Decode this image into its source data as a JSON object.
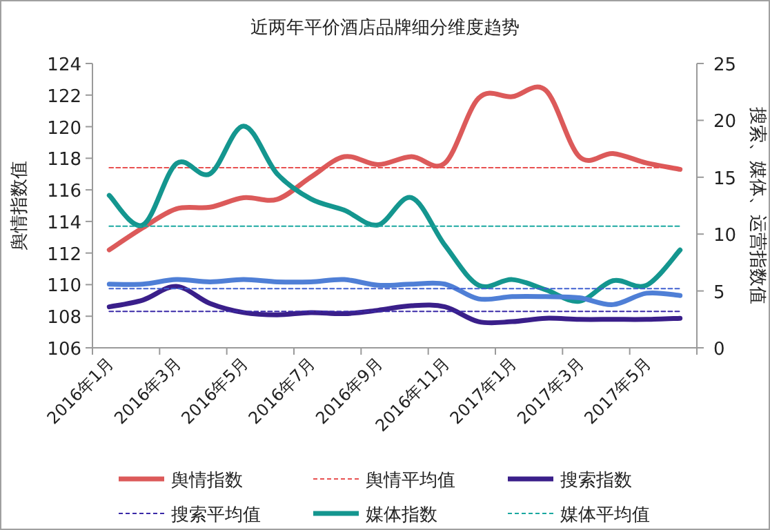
{
  "chart_data": {
    "type": "line",
    "title": "近两年平价酒店品牌细分维度趋势",
    "ylabel": "舆情指数值",
    "y2label": "搜索、媒体、运营指数值",
    "categories": [
      "2016年1月",
      null,
      "2016年3月",
      null,
      "2016年5月",
      null,
      "2016年7月",
      null,
      "2016年9月",
      null,
      "2016年11月",
      null,
      "2017年1月",
      null,
      "2017年3月",
      null,
      "2017年5月",
      null
    ],
    "ylim": [
      106,
      124
    ],
    "yticks": [
      106,
      108,
      110,
      112,
      114,
      116,
      118,
      120,
      122,
      124
    ],
    "y2lim": [
      0,
      25
    ],
    "y2ticks": [
      0,
      5,
      10,
      15,
      20,
      25
    ],
    "legend": "bottom",
    "grid": false,
    "marker": "none",
    "series": [
      {
        "name": "舆情指数",
        "color": "#dc5a5a",
        "values": [
          112.2,
          113.6,
          114.8,
          114.9,
          115.5,
          115.4,
          116.8,
          118.1,
          117.6,
          118.1,
          117.7,
          121.8,
          121.9,
          122.3,
          118.1,
          118.3,
          117.7,
          117.3
        ]
      },
      {
        "name": "舆情平均值",
        "color": "#e85050",
        "line_style": "dashed",
        "values": [
          117.4,
          117.4,
          117.4,
          117.4,
          117.4,
          117.4,
          117.4,
          117.4,
          117.4,
          117.4,
          117.4,
          117.4,
          117.4,
          117.4,
          117.4,
          117.4,
          117.4,
          117.4
        ]
      },
      {
        "name": "搜索指数",
        "color": "#3a1f8a",
        "axis": "y2",
        "values": [
          3.6,
          4.2,
          5.4,
          3.9,
          3.1,
          2.9,
          3.1,
          3.0,
          3.3,
          3.7,
          3.6,
          2.3,
          2.3,
          2.6,
          2.5,
          2.5,
          2.5,
          2.6
        ]
      },
      {
        "name": "搜索平均值",
        "color": "#3a2aa8",
        "axis": "y2",
        "line_style": "dashed",
        "values": [
          3.2,
          3.2,
          3.2,
          3.2,
          3.2,
          3.2,
          3.2,
          3.2,
          3.2,
          3.2,
          3.2,
          3.2,
          3.2,
          3.2,
          3.2,
          3.2,
          3.2,
          3.2
        ]
      },
      {
        "name": "媒体指数",
        "color": "#14968f",
        "axis": "y2",
        "values": [
          13.4,
          10.8,
          16.2,
          15.3,
          19.5,
          15.3,
          13.1,
          12.1,
          10.8,
          13.2,
          9.0,
          5.5,
          6.0,
          5.1,
          4.1,
          5.9,
          5.5,
          8.6
        ]
      },
      {
        "name": "媒体平均值",
        "color": "#1aa8a0",
        "axis": "y2",
        "line_style": "dashed",
        "values": [
          10.7,
          10.7,
          10.7,
          10.7,
          10.7,
          10.7,
          10.7,
          10.7,
          10.7,
          10.7,
          10.7,
          10.7,
          10.7,
          10.7,
          10.7,
          10.7,
          10.7,
          10.7
        ]
      },
      {
        "color": "#4f7fd6",
        "axis": "y2",
        "values": [
          5.6,
          5.6,
          6.0,
          5.8,
          6.0,
          5.8,
          5.8,
          6.0,
          5.5,
          5.6,
          5.6,
          4.3,
          4.5,
          4.5,
          4.4,
          3.8,
          4.8,
          4.6
        ]
      },
      {
        "color": "#4060d0",
        "axis": "y2",
        "line_style": "dashed",
        "values": [
          5.2,
          5.2,
          5.2,
          5.2,
          5.2,
          5.2,
          5.2,
          5.2,
          5.2,
          5.2,
          5.2,
          5.2,
          5.2,
          5.2,
          5.2,
          5.2,
          5.2,
          5.2
        ]
      }
    ]
  }
}
